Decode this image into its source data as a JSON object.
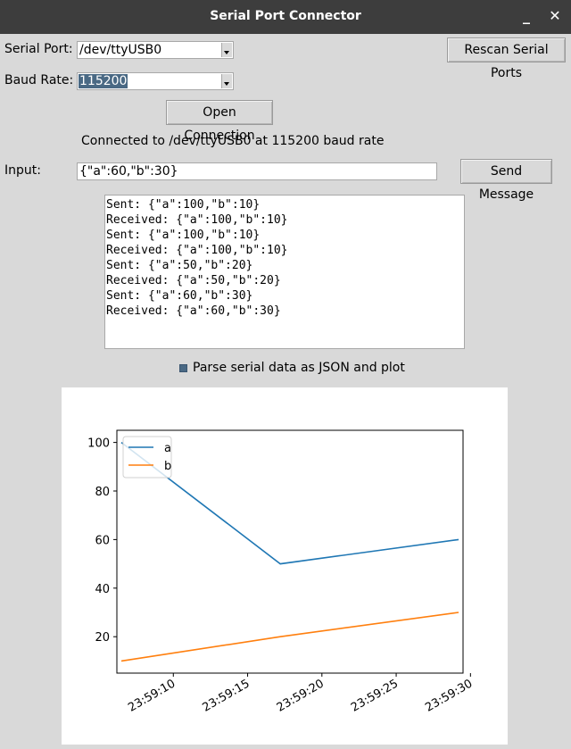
{
  "window": {
    "title": "Serial Port Connector",
    "minimize_label": "_",
    "close_label": "✕"
  },
  "serial_port": {
    "label": "Serial Port:",
    "value": "/dev/ttyUSB0"
  },
  "rescan_button": "Rescan Serial Ports",
  "baud_rate": {
    "label": "Baud Rate:",
    "value": "115200"
  },
  "open_button": "Open Connection",
  "status": "Connected to /dev/ttyUSB0 at 115200 baud rate",
  "input": {
    "label": "Input:",
    "value": "{\"a\":60,\"b\":30}"
  },
  "send_button": "Send Message",
  "log_lines": [
    "Sent: {\"a\":100,\"b\":10}",
    "Received: {\"a\":100,\"b\":10}",
    "Sent: {\"a\":100,\"b\":10}",
    "Received: {\"a\":100,\"b\":10}",
    "Sent: {\"a\":50,\"b\":20}",
    "Received: {\"a\":50,\"b\":20}",
    "Sent: {\"a\":60,\"b\":30}",
    "Received: {\"a\":60,\"b\":30}"
  ],
  "parse_checkbox": {
    "label": "Parse serial data as JSON and plot",
    "checked": true
  },
  "chart_data": {
    "type": "line",
    "title": "",
    "xlabel": "",
    "ylabel": "",
    "x": [
      "23:59:06.5",
      "23:59:17.2",
      "23:59:29.2"
    ],
    "x_tick_labels": [
      "23:59:10",
      "23:59:15",
      "23:59:20",
      "23:59:25",
      "23:59:30"
    ],
    "y_ticks": [
      20,
      40,
      60,
      80,
      100
    ],
    "ylim": [
      5,
      105
    ],
    "series": [
      {
        "name": "a",
        "color": "#1f77b4",
        "values": [
          100,
          50,
          60
        ]
      },
      {
        "name": "b",
        "color": "#ff7f0e",
        "values": [
          10,
          20,
          30
        ]
      }
    ],
    "legend": "upper-left",
    "grid": false
  }
}
